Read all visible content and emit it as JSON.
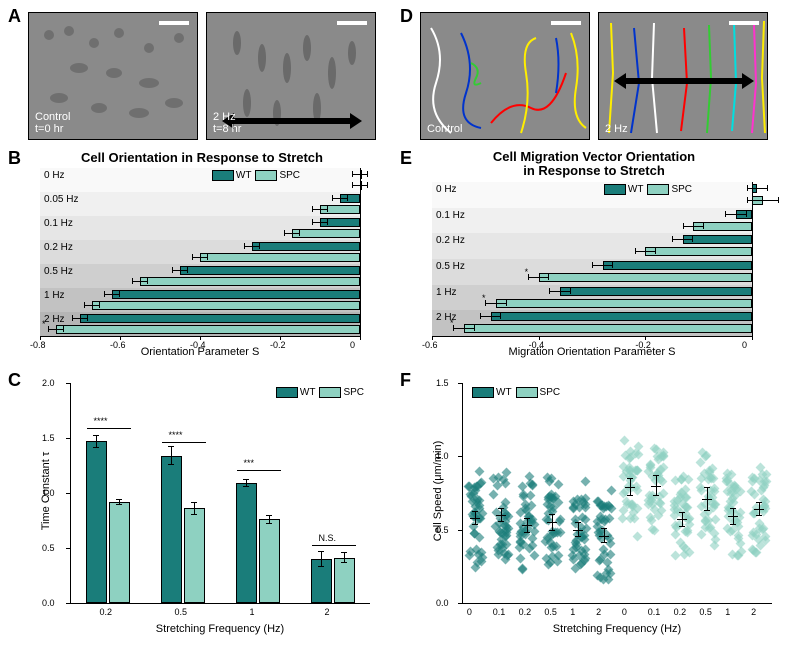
{
  "colors": {
    "wt": "#1a7d7a",
    "spc": "#8ed1c1",
    "bg": "#ffffff",
    "axis": "#000000",
    "micrograph": "#808080",
    "overlay_text": "#ffffff",
    "shade_steps": [
      "#f9f9f9",
      "#f0f0f0",
      "#e6e6e6",
      "#dcdcdc",
      "#cfcfcf",
      "#c2c2c2",
      "#b5b5b5"
    ]
  },
  "typography": {
    "panel_label_fontsize": 18,
    "title_fontsize": 13,
    "axis_label_fontsize": 11,
    "tick_fontsize": 9
  },
  "legend": {
    "wt": "WT",
    "spc": "SPC"
  },
  "panelA": {
    "label": "A",
    "left": {
      "text1": "Control",
      "text2": "t=0 hr"
    },
    "right": {
      "text1": "2 Hz",
      "text2": "t=8 hr"
    }
  },
  "panelD": {
    "label": "D",
    "left": {
      "text1": "Control"
    },
    "right": {
      "text1": "2 Hz"
    },
    "track_colors": [
      "#ffffff",
      "#0033cc",
      "#33cc33",
      "#ff0000",
      "#ffee00",
      "#ff33cc",
      "#00e0e0"
    ]
  },
  "panelB": {
    "label": "B",
    "title": "Cell Orientation in Response to Stretch",
    "xaxis_label": "Orientation Parameter S",
    "xlim": [
      -0.8,
      0
    ],
    "xticks": [
      -0.8,
      -0.6,
      -0.4,
      -0.2,
      0
    ],
    "rows": [
      {
        "label": "0 Hz",
        "wt": 0.0,
        "spc": 0.0,
        "wt_err": 0.02,
        "spc_err": 0.02
      },
      {
        "label": "0.05 Hz",
        "wt": -0.05,
        "spc": -0.1,
        "wt_err": 0.02,
        "spc_err": 0.02
      },
      {
        "label": "0.1 Hz",
        "wt": -0.1,
        "spc": -0.17,
        "wt_err": 0.02,
        "spc_err": 0.02
      },
      {
        "label": "0.2 Hz",
        "wt": -0.27,
        "spc": -0.4,
        "wt_err": 0.02,
        "spc_err": 0.02
      },
      {
        "label": "0.5 Hz",
        "wt": -0.45,
        "spc": -0.55,
        "wt_err": 0.02,
        "spc_err": 0.02
      },
      {
        "label": "1 Hz",
        "wt": -0.62,
        "spc": -0.67,
        "wt_err": 0.02,
        "spc_err": 0.02
      },
      {
        "label": "2 Hz",
        "wt": -0.7,
        "spc": -0.76,
        "wt_err": 0.02,
        "spc_err": 0.02,
        "sig": "*"
      }
    ]
  },
  "panelE": {
    "label": "E",
    "title": "Cell Migration Vector Orientation\nin Response to Stretch",
    "xaxis_label": "Migration Orientation Parameter S",
    "xlim": [
      -0.6,
      0
    ],
    "xticks": [
      -0.6,
      -0.4,
      -0.2,
      0
    ],
    "rows": [
      {
        "label": "0 Hz",
        "wt": 0.01,
        "spc": 0.02,
        "wt_err": 0.02,
        "spc_err": 0.03
      },
      {
        "label": "0.1 Hz",
        "wt": -0.03,
        "spc": -0.11,
        "wt_err": 0.02,
        "spc_err": 0.02
      },
      {
        "label": "0.2 Hz",
        "wt": -0.13,
        "spc": -0.2,
        "wt_err": 0.02,
        "spc_err": 0.02
      },
      {
        "label": "0.5 Hz",
        "wt": -0.28,
        "spc": -0.4,
        "wt_err": 0.02,
        "spc_err": 0.02,
        "sig": "*"
      },
      {
        "label": "1 Hz",
        "wt": -0.36,
        "spc": -0.48,
        "wt_err": 0.02,
        "spc_err": 0.02,
        "sig": "*"
      },
      {
        "label": "2 Hz",
        "wt": -0.49,
        "spc": -0.54,
        "wt_err": 0.02,
        "spc_err": 0.02,
        "sig": "*"
      }
    ]
  },
  "panelC": {
    "label": "C",
    "yaxis_label": "Time Constant τ",
    "xaxis_label": "Stretching Frequency (Hz)",
    "ylim": [
      0,
      2.0
    ],
    "yticks": [
      0,
      0.5,
      1.0,
      1.5,
      2.0
    ],
    "groups": [
      {
        "x": "0.2",
        "wt": 1.47,
        "spc": 0.92,
        "wt_err": 0.06,
        "spc_err": 0.03,
        "sig": "****"
      },
      {
        "x": "0.5",
        "wt": 1.34,
        "spc": 0.86,
        "wt_err": 0.09,
        "spc_err": 0.06,
        "sig": "****"
      },
      {
        "x": "1",
        "wt": 1.09,
        "spc": 0.76,
        "wt_err": 0.04,
        "spc_err": 0.04,
        "sig": "***"
      },
      {
        "x": "2",
        "wt": 0.4,
        "spc": 0.41,
        "wt_err": 0.07,
        "spc_err": 0.05,
        "sig": "N.S."
      }
    ]
  },
  "panelF": {
    "label": "F",
    "yaxis_label": "Cell Speed (μm/min)",
    "xaxis_label": "Stretching Frequency (Hz)",
    "ylim": [
      0,
      1.5
    ],
    "yticks": [
      0,
      0.5,
      1.0,
      1.5
    ],
    "categories": [
      "0",
      "0.1",
      "0.2",
      "0.5",
      "1",
      "2",
      "0",
      "0.1",
      "0.2",
      "0.5",
      "1",
      "2"
    ],
    "series": [
      {
        "type": "wt",
        "mean": [
          0.58,
          0.6,
          0.53,
          0.55,
          0.5,
          0.46
        ],
        "err": [
          0.05,
          0.05,
          0.05,
          0.06,
          0.05,
          0.05
        ]
      },
      {
        "type": "spc",
        "mean": [
          0.79,
          0.8,
          0.57,
          0.71,
          0.59,
          0.64
        ],
        "err": [
          0.06,
          0.07,
          0.05,
          0.08,
          0.06,
          0.05
        ]
      }
    ],
    "points_per_cat": 40
  }
}
